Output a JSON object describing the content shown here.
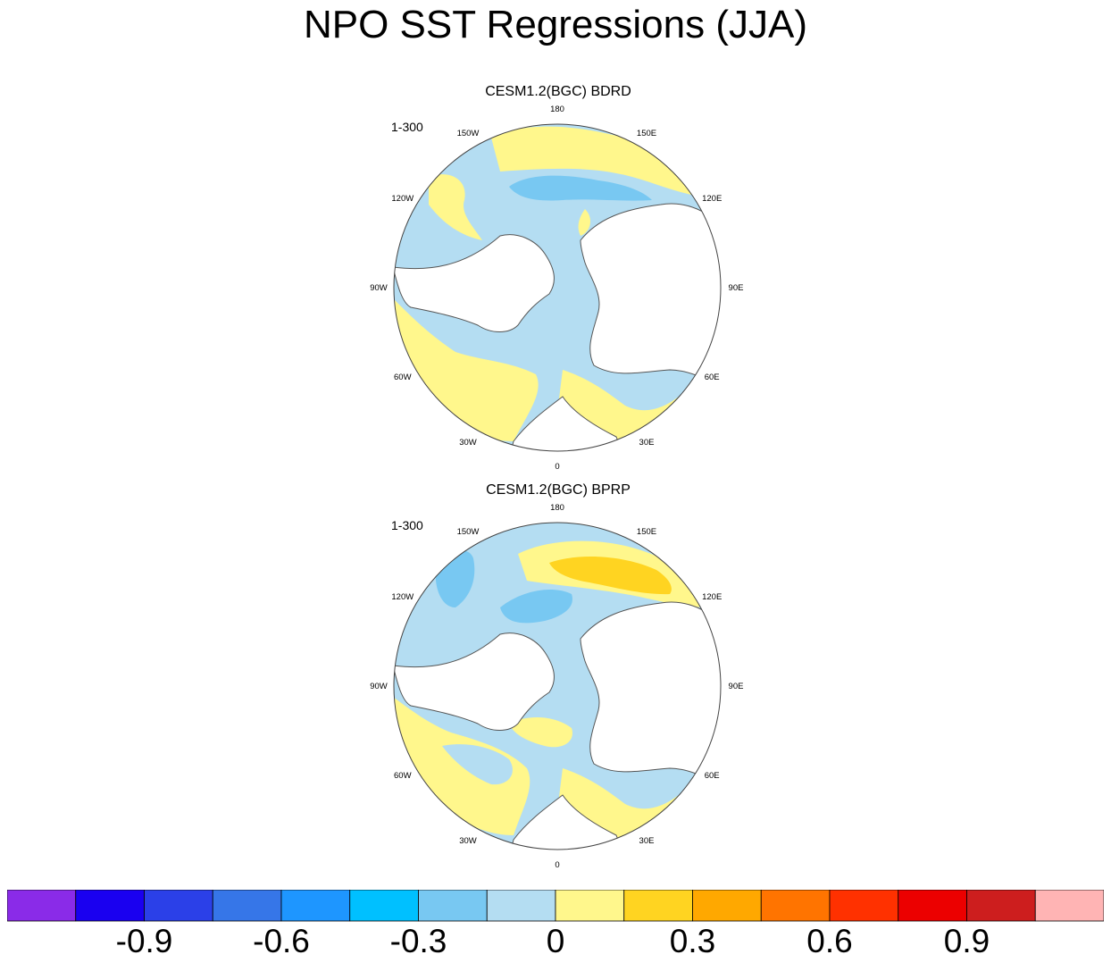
{
  "title": "NPO SST Regressions (JJA)",
  "panels": [
    {
      "title": "CESM1.2(BGC) BDRD",
      "period": "1-300",
      "longitude_labels": [
        "180",
        "150E",
        "120E",
        "90E",
        "60E",
        "30E",
        "0",
        "30W",
        "60W",
        "90W",
        "120W",
        "150W"
      ]
    },
    {
      "title": "CESM1.2(BGC) BPRP",
      "period": "1-300",
      "longitude_labels": [
        "180",
        "150E",
        "120E",
        "90E",
        "60E",
        "30E",
        "0",
        "30W",
        "60W",
        "90W",
        "120W",
        "150W"
      ]
    }
  ],
  "colorbar": {
    "colors": [
      "#8a2be8",
      "#1a00f0",
      "#2b40e8",
      "#3676e8",
      "#1e96ff",
      "#00c0ff",
      "#78c8f2",
      "#b4ddf2",
      "#fff78c",
      "#ffd421",
      "#ffa800",
      "#ff7400",
      "#ff3100",
      "#ec0000",
      "#cd1e1e",
      "#ffb4b4"
    ],
    "tick_labels": [
      "-0.9",
      "-0.6",
      "-0.3",
      "0",
      "0.3",
      "0.6",
      "0.9"
    ]
  },
  "legend_colors": {
    "land": "#ffffff",
    "coastline": "#555555"
  }
}
